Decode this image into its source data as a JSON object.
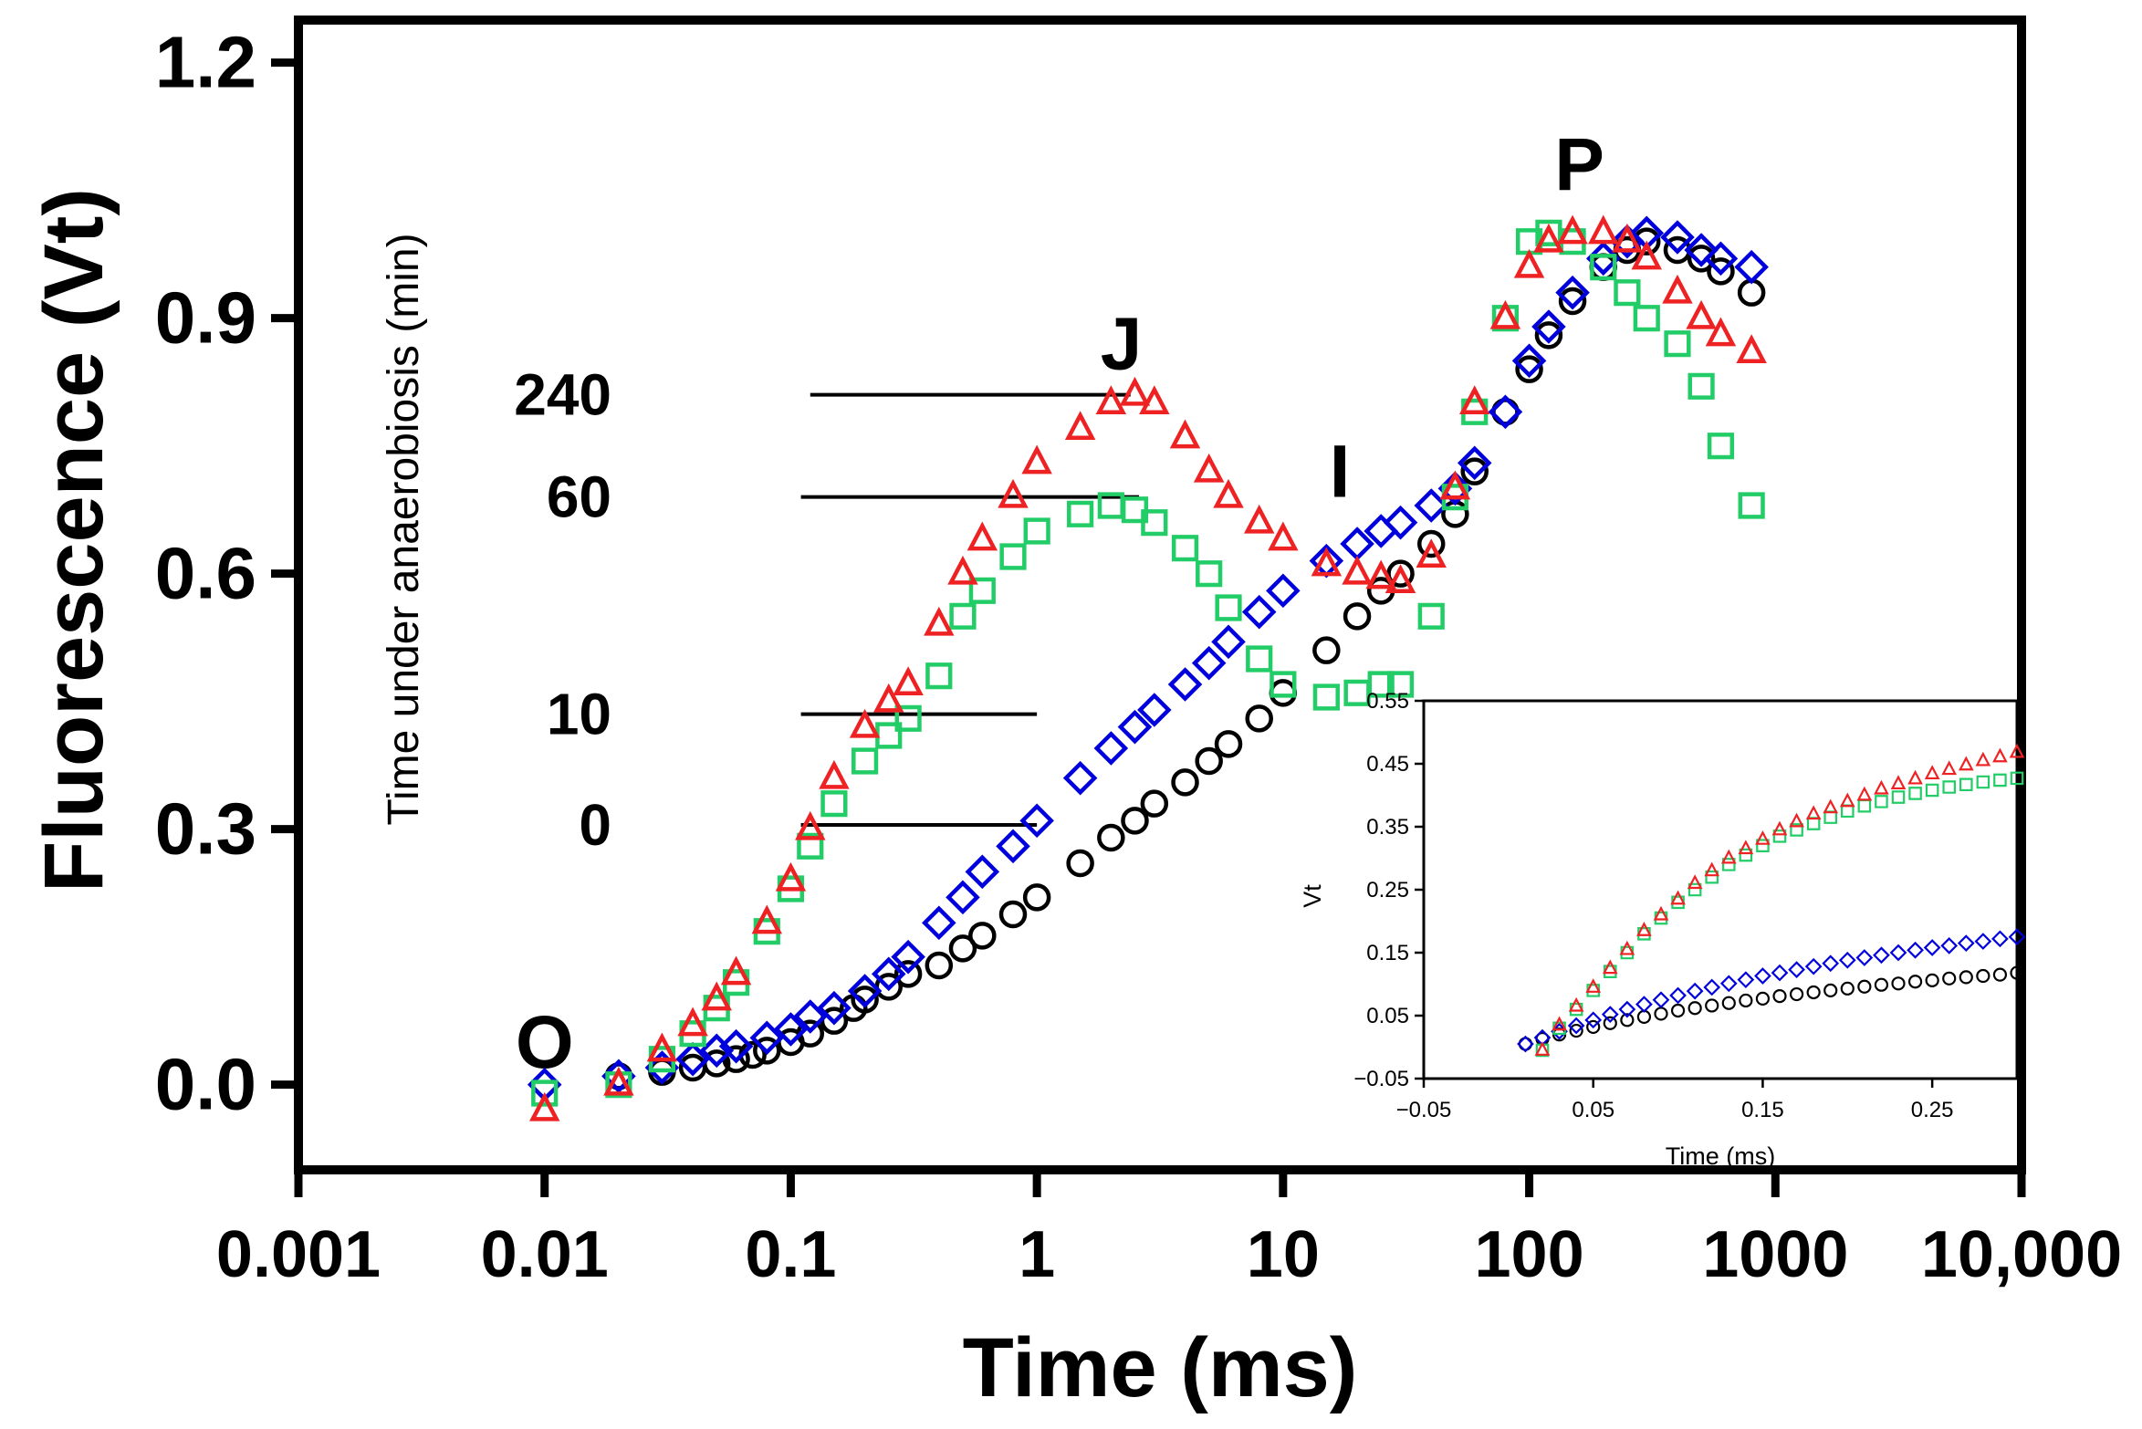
{
  "chart_data": [
    {
      "id": "main",
      "type": "scatter",
      "title": "",
      "xlabel": "Time (ms)",
      "ylabel": "Fluorescence (Vt)",
      "xscale": "log",
      "xlim": [
        0.001,
        10000
      ],
      "ylim": [
        -0.1,
        1.25
      ],
      "xticks": [
        0.001,
        0.01,
        0.1,
        1,
        10,
        100,
        1000,
        10000
      ],
      "xtick_labels": [
        "0.001",
        "0.01",
        "0.1",
        "1",
        "10",
        "100",
        "1000",
        "10,000"
      ],
      "yticks": [
        0.0,
        0.3,
        0.6,
        0.9,
        1.2
      ],
      "ytick_labels": [
        "0.0",
        "0.3",
        "0.6",
        "0.9",
        "1.2"
      ],
      "phase_labels": [
        {
          "text": "O",
          "x": 0.01,
          "y": 0.05
        },
        {
          "text": "J",
          "x": 2.2,
          "y": 0.87
        },
        {
          "text": "I",
          "x": 17,
          "y": 0.72
        },
        {
          "text": "P",
          "x": 160,
          "y": 1.08
        }
      ],
      "annotation_title": "Time under anaerobiosis (min)",
      "annotations": [
        {
          "label": "240",
          "series": "240 min",
          "y": 0.81,
          "x_from": 0.12,
          "x_to": 2.4
        },
        {
          "label": "60",
          "series": "60 min",
          "y": 0.69,
          "x_from": 0.11,
          "x_to": 2.6
        },
        {
          "label": "10",
          "series": "10 min",
          "y": 0.435,
          "x_from": 0.11,
          "x_to": 1.0
        },
        {
          "label": "0",
          "series": "0 min",
          "y": 0.305,
          "x_from": 0.11,
          "x_to": 1.0
        }
      ],
      "series": [
        {
          "name": "0 min",
          "marker": "circle",
          "color": "#000000",
          "x": [
            0.02,
            0.03,
            0.04,
            0.05,
            0.06,
            0.07,
            0.08,
            0.1,
            0.12,
            0.15,
            0.18,
            0.2,
            0.25,
            0.3,
            0.4,
            0.5,
            0.6,
            0.8,
            1,
            1.5,
            2,
            2.5,
            3,
            4,
            5,
            6,
            8,
            10,
            15,
            20,
            25,
            30,
            40,
            50,
            60,
            80,
            100,
            120,
            150,
            200,
            250,
            300,
            400,
            500,
            600,
            800
          ],
          "y": [
            0.01,
            0.015,
            0.02,
            0.025,
            0.03,
            0.035,
            0.04,
            0.05,
            0.06,
            0.075,
            0.09,
            0.1,
            0.115,
            0.13,
            0.14,
            0.16,
            0.175,
            0.2,
            0.22,
            0.26,
            0.29,
            0.31,
            0.33,
            0.355,
            0.38,
            0.4,
            0.43,
            0.46,
            0.51,
            0.55,
            0.58,
            0.6,
            0.635,
            0.67,
            0.72,
            0.79,
            0.84,
            0.88,
            0.92,
            0.96,
            0.98,
            0.99,
            0.98,
            0.97,
            0.955,
            0.93
          ]
        },
        {
          "name": "10 min",
          "marker": "diamond",
          "color": "#0000dd",
          "x": [
            0.01,
            0.02,
            0.03,
            0.04,
            0.05,
            0.06,
            0.08,
            0.1,
            0.12,
            0.15,
            0.2,
            0.25,
            0.3,
            0.4,
            0.5,
            0.6,
            0.8,
            1,
            1.5,
            2,
            2.5,
            3,
            4,
            5,
            6,
            8,
            10,
            15,
            20,
            25,
            30,
            40,
            50,
            60,
            80,
            100,
            120,
            150,
            200,
            250,
            300,
            400,
            500,
            600,
            800
          ],
          "y": [
            0.0,
            0.01,
            0.02,
            0.03,
            0.04,
            0.045,
            0.055,
            0.065,
            0.08,
            0.09,
            0.11,
            0.13,
            0.15,
            0.19,
            0.22,
            0.25,
            0.28,
            0.31,
            0.36,
            0.395,
            0.42,
            0.44,
            0.47,
            0.495,
            0.52,
            0.555,
            0.58,
            0.615,
            0.635,
            0.65,
            0.66,
            0.68,
            0.7,
            0.73,
            0.79,
            0.85,
            0.89,
            0.93,
            0.97,
            0.99,
            1.0,
            0.995,
            0.98,
            0.97,
            0.96
          ]
        },
        {
          "name": "60 min",
          "marker": "square",
          "color": "#22cc66",
          "x": [
            0.01,
            0.02,
            0.03,
            0.04,
            0.05,
            0.06,
            0.08,
            0.1,
            0.12,
            0.15,
            0.2,
            0.25,
            0.3,
            0.4,
            0.5,
            0.6,
            0.8,
            1,
            1.5,
            2,
            2.5,
            3,
            4,
            5,
            6,
            8,
            10,
            15,
            20,
            25,
            30,
            40,
            50,
            60,
            80,
            100,
            120,
            150,
            200,
            250,
            300,
            400,
            500,
            600,
            800
          ],
          "y": [
            -0.01,
            0.0,
            0.03,
            0.06,
            0.09,
            0.12,
            0.18,
            0.23,
            0.28,
            0.33,
            0.38,
            0.41,
            0.43,
            0.48,
            0.55,
            0.58,
            0.62,
            0.65,
            0.67,
            0.68,
            0.675,
            0.66,
            0.63,
            0.6,
            0.56,
            0.5,
            0.47,
            0.455,
            0.46,
            0.47,
            0.47,
            0.55,
            0.69,
            0.79,
            0.9,
            0.99,
            1.0,
            0.99,
            0.96,
            0.93,
            0.9,
            0.87,
            0.82,
            0.75,
            0.68
          ]
        },
        {
          "name": "240 min",
          "marker": "triangle",
          "color": "#ee2222",
          "x": [
            0.01,
            0.02,
            0.03,
            0.04,
            0.05,
            0.06,
            0.08,
            0.1,
            0.12,
            0.15,
            0.2,
            0.25,
            0.3,
            0.4,
            0.5,
            0.6,
            0.8,
            1,
            1.5,
            2,
            2.5,
            3,
            4,
            5,
            6,
            8,
            10,
            15,
            20,
            25,
            30,
            40,
            50,
            60,
            80,
            100,
            120,
            150,
            200,
            250,
            300,
            400,
            500,
            600,
            800
          ],
          "y": [
            -0.03,
            0.0,
            0.04,
            0.07,
            0.1,
            0.13,
            0.19,
            0.24,
            0.3,
            0.36,
            0.42,
            0.45,
            0.47,
            0.54,
            0.6,
            0.64,
            0.69,
            0.73,
            0.77,
            0.8,
            0.81,
            0.8,
            0.76,
            0.72,
            0.69,
            0.66,
            0.64,
            0.61,
            0.6,
            0.595,
            0.59,
            0.62,
            0.7,
            0.8,
            0.9,
            0.96,
            0.99,
            1.0,
            1.0,
            0.99,
            0.97,
            0.93,
            0.9,
            0.88,
            0.86
          ]
        }
      ]
    },
    {
      "id": "inset",
      "type": "scatter",
      "title": "",
      "xlabel": "Time (ms)",
      "ylabel": "Vt",
      "xlim": [
        -0.05,
        0.3
      ],
      "ylim": [
        -0.05,
        0.55
      ],
      "xticks": [
        -0.05,
        0.05,
        0.15,
        0.25
      ],
      "xtick_labels": [
        "−0.05",
        "0.05",
        "0.15",
        "0.25"
      ],
      "yticks": [
        -0.05,
        0.05,
        0.15,
        0.25,
        0.35,
        0.45,
        0.55
      ],
      "ytick_labels": [
        "−0.05",
        "0.05",
        "0.15",
        "0.25",
        "0.35",
        "0.45",
        "0.55"
      ],
      "series": [
        {
          "name": "0 min",
          "marker": "circle",
          "color": "#000000",
          "x": [
            0.01,
            0.02,
            0.03,
            0.04,
            0.05,
            0.06,
            0.07,
            0.08,
            0.09,
            0.1,
            0.11,
            0.12,
            0.13,
            0.14,
            0.15,
            0.16,
            0.17,
            0.18,
            0.19,
            0.2,
            0.21,
            0.22,
            0.23,
            0.24,
            0.25,
            0.26,
            0.27,
            0.28,
            0.29,
            0.3
          ],
          "y": [
            0.005,
            0.013,
            0.02,
            0.026,
            0.032,
            0.038,
            0.043,
            0.048,
            0.053,
            0.058,
            0.062,
            0.066,
            0.07,
            0.074,
            0.077,
            0.081,
            0.084,
            0.087,
            0.09,
            0.093,
            0.096,
            0.099,
            0.101,
            0.104,
            0.106,
            0.109,
            0.111,
            0.113,
            0.115,
            0.118
          ]
        },
        {
          "name": "10 min",
          "marker": "diamond",
          "color": "#0000dd",
          "x": [
            0.01,
            0.02,
            0.03,
            0.04,
            0.05,
            0.06,
            0.07,
            0.08,
            0.09,
            0.1,
            0.11,
            0.12,
            0.13,
            0.14,
            0.15,
            0.16,
            0.17,
            0.18,
            0.19,
            0.2,
            0.21,
            0.22,
            0.23,
            0.24,
            0.25,
            0.26,
            0.27,
            0.28,
            0.29,
            0.3
          ],
          "y": [
            0.005,
            0.015,
            0.025,
            0.034,
            0.043,
            0.052,
            0.06,
            0.068,
            0.075,
            0.082,
            0.089,
            0.095,
            0.101,
            0.107,
            0.113,
            0.118,
            0.123,
            0.128,
            0.133,
            0.138,
            0.142,
            0.146,
            0.15,
            0.154,
            0.158,
            0.161,
            0.165,
            0.168,
            0.172,
            0.175
          ]
        },
        {
          "name": "60 min",
          "marker": "square",
          "color": "#22cc66",
          "x": [
            0.02,
            0.03,
            0.04,
            0.05,
            0.06,
            0.07,
            0.08,
            0.09,
            0.1,
            0.11,
            0.12,
            0.13,
            0.14,
            0.15,
            0.16,
            0.17,
            0.18,
            0.19,
            0.2,
            0.21,
            0.22,
            0.23,
            0.24,
            0.25,
            0.26,
            0.27,
            0.28,
            0.29,
            0.3
          ],
          "y": [
            -0.005,
            0.03,
            0.06,
            0.09,
            0.12,
            0.15,
            0.18,
            0.205,
            0.23,
            0.25,
            0.27,
            0.29,
            0.305,
            0.32,
            0.335,
            0.345,
            0.355,
            0.365,
            0.375,
            0.383,
            0.39,
            0.397,
            0.403,
            0.408,
            0.413,
            0.417,
            0.421,
            0.424,
            0.427
          ]
        },
        {
          "name": "240 min",
          "marker": "triangle",
          "color": "#ee2222",
          "x": [
            0.02,
            0.03,
            0.04,
            0.05,
            0.06,
            0.07,
            0.08,
            0.09,
            0.1,
            0.11,
            0.12,
            0.13,
            0.14,
            0.15,
            0.16,
            0.17,
            0.18,
            0.19,
            0.2,
            0.21,
            0.22,
            0.23,
            0.24,
            0.25,
            0.26,
            0.27,
            0.28,
            0.29,
            0.3
          ],
          "y": [
            -0.005,
            0.035,
            0.065,
            0.095,
            0.125,
            0.155,
            0.185,
            0.21,
            0.235,
            0.26,
            0.28,
            0.3,
            0.315,
            0.33,
            0.345,
            0.358,
            0.37,
            0.38,
            0.39,
            0.4,
            0.41,
            0.418,
            0.426,
            0.434,
            0.441,
            0.448,
            0.455,
            0.461,
            0.468
          ]
        }
      ]
    }
  ]
}
